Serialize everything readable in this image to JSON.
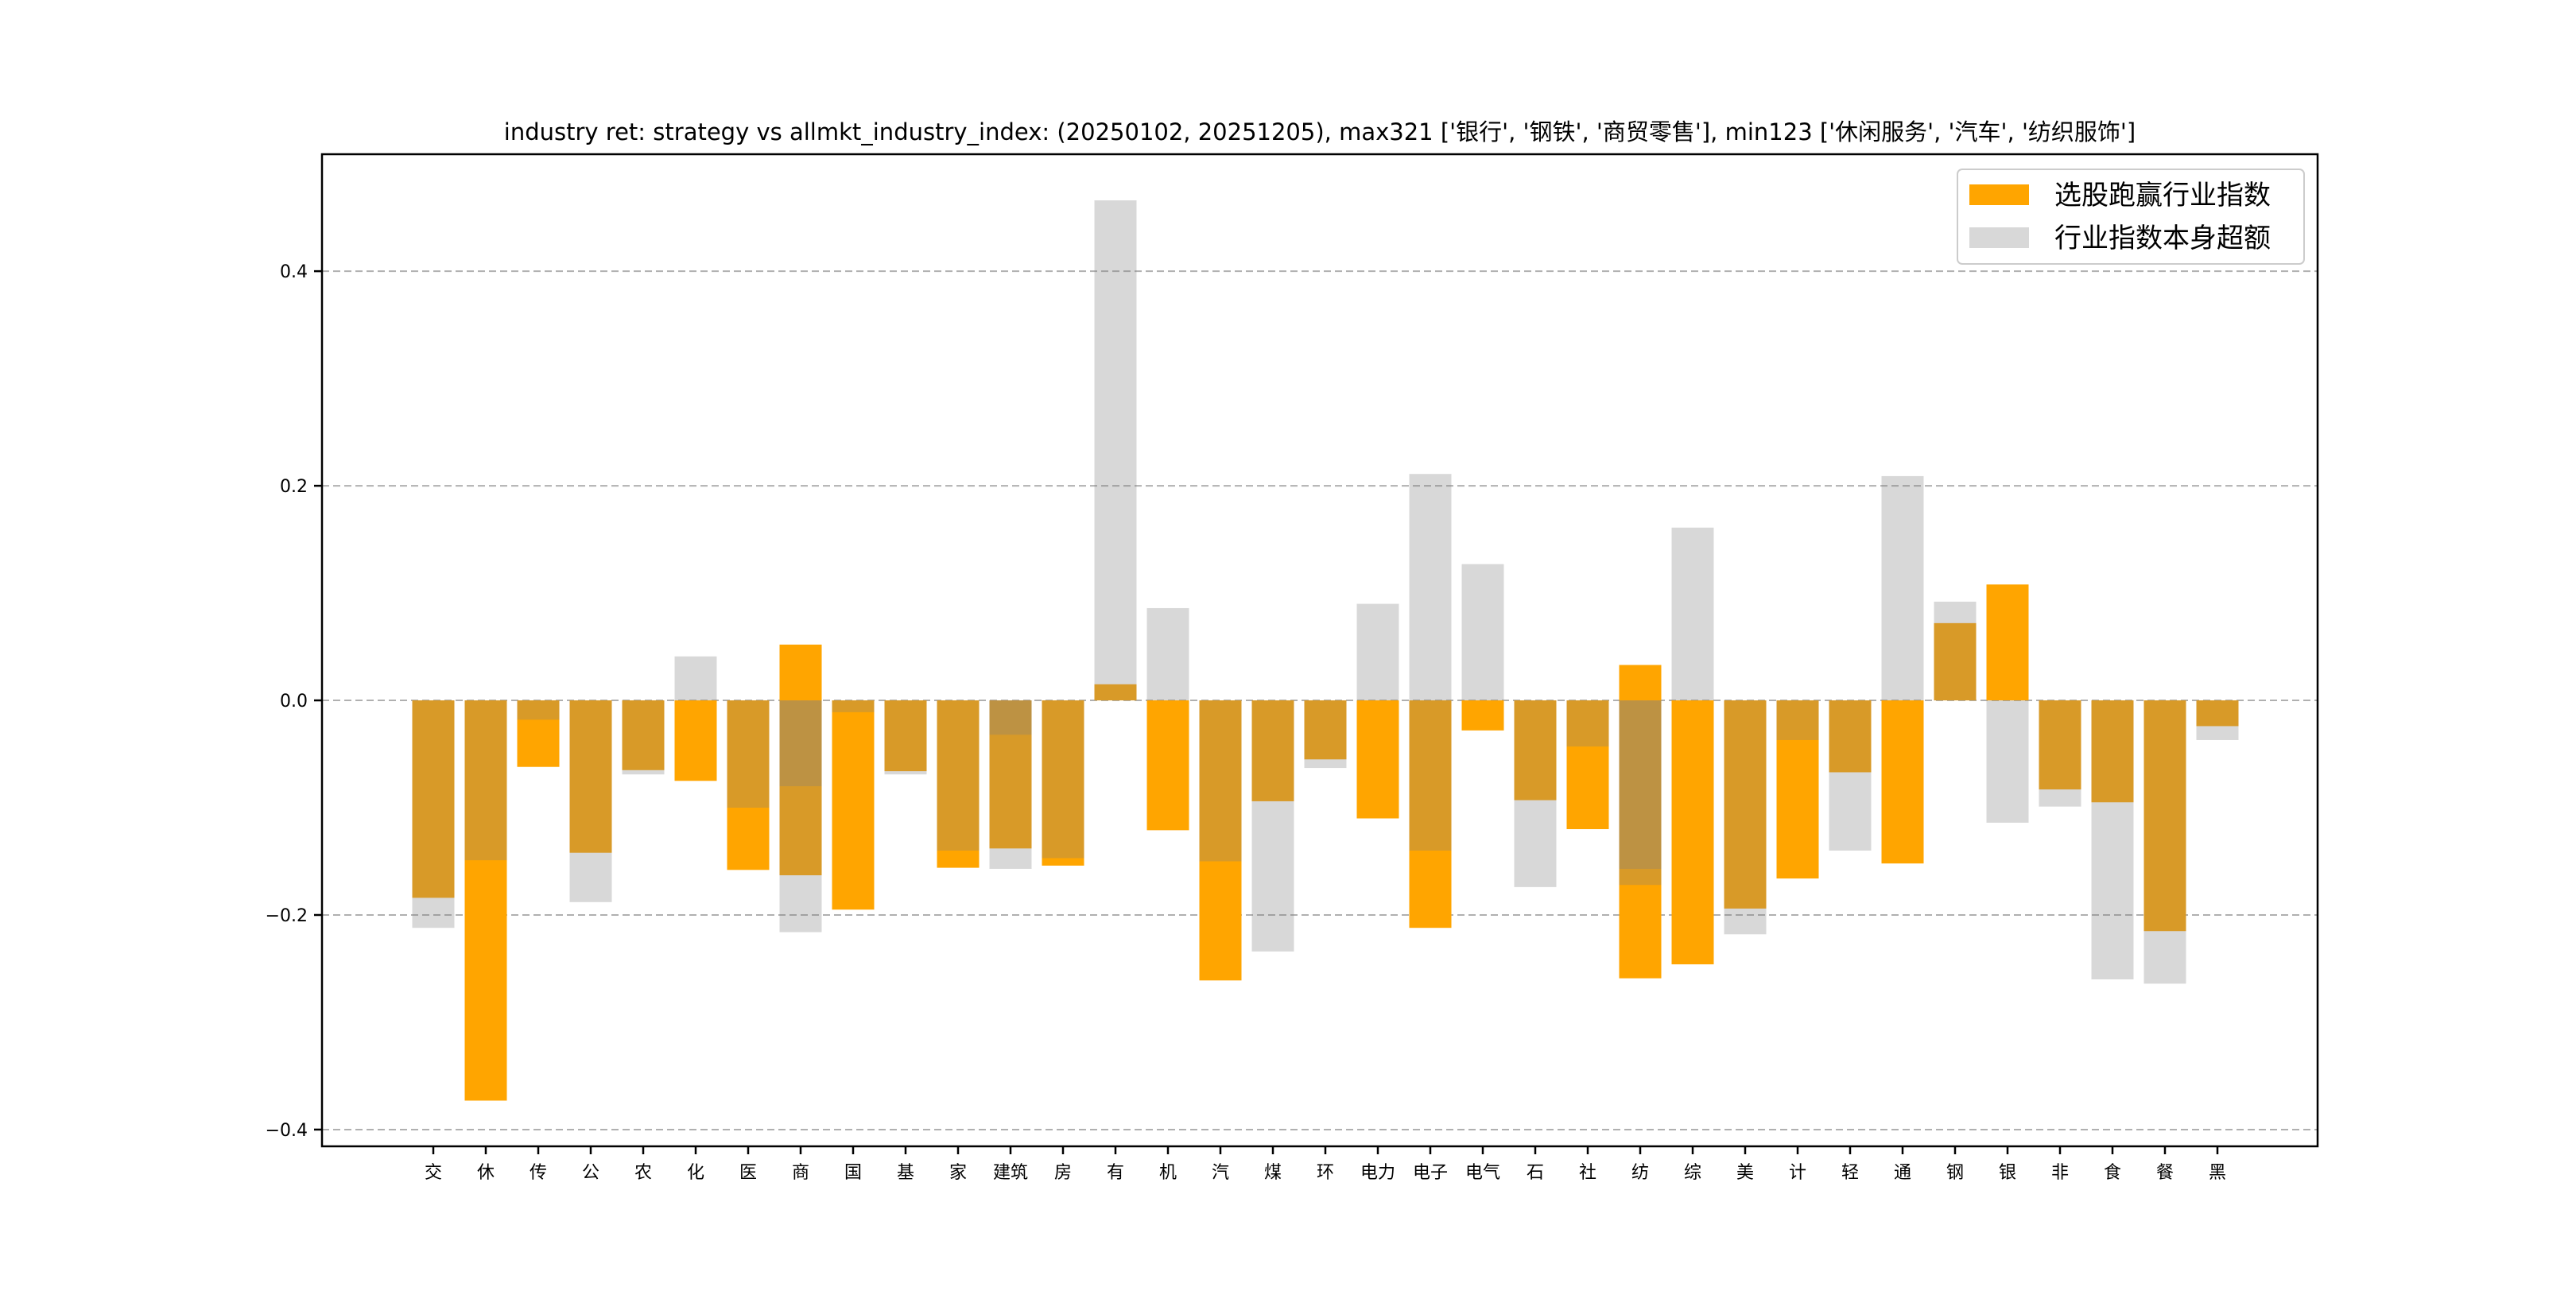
{
  "chart_data": {
    "type": "bar",
    "title": "industry ret: strategy vs allmkt_industry_index: (20250102, 20251205), max321 ['银行', '钢铁', '商贸零售'], min123 ['休闲服务', '汽车', '纺织服饰']",
    "xlabel": "",
    "ylabel": "",
    "ylim": [
      -0.4156,
      0.509
    ],
    "yticks": [
      -0.4,
      -0.2,
      0.0,
      0.2,
      0.4
    ],
    "ytick_labels": [
      "−0.4",
      "−0.2",
      "0.0",
      "0.2",
      "0.4"
    ],
    "grid": "y, dashed",
    "legend_position": "top-right",
    "colors": {
      "strategy": "#ffa500",
      "index": "#818181",
      "index_alpha": 0.31
    },
    "categories": [
      "交",
      "休",
      "传",
      "公",
      "农",
      "化",
      "医",
      "商",
      "国",
      "基",
      "家",
      "建筑",
      "房",
      "有",
      "机",
      "汽",
      "煤",
      "环",
      "电力",
      "电子",
      "电气",
      "石",
      "社",
      "纺",
      "综",
      "美",
      "计",
      "轻",
      "通",
      "钢",
      "银",
      "非",
      "食",
      "餐",
      "黑"
    ],
    "series": [
      {
        "name": "选股跑赢行业指数",
        "values": [
          [
            -0.184
          ],
          [
            -0.373
          ],
          [
            -0.062
          ],
          [
            -0.142
          ],
          [
            -0.065
          ],
          [
            -0.075
          ],
          [
            -0.158
          ],
          [
            0.052,
            -0.163
          ],
          [
            -0.195
          ],
          [
            -0.066
          ],
          [
            -0.156
          ],
          [
            -0.138
          ],
          [
            -0.154
          ],
          [
            0.015
          ],
          [
            -0.121
          ],
          [
            -0.261
          ],
          [
            -0.094
          ],
          [
            -0.055
          ],
          [
            -0.11
          ],
          [
            -0.212
          ],
          [
            -0.028
          ],
          [
            -0.093
          ],
          [
            -0.12
          ],
          [
            0.033,
            -0.259
          ],
          [
            -0.246
          ],
          [
            -0.194
          ],
          [
            -0.166
          ],
          [
            -0.067
          ],
          [
            -0.152
          ],
          [
            0.072
          ],
          [
            0.108
          ],
          [
            -0.083
          ],
          [
            -0.095
          ],
          [
            -0.215
          ],
          [
            -0.024
          ]
        ]
      },
      {
        "name": "行业指数本身超额",
        "values": [
          [
            -0.212
          ],
          [
            -0.149
          ],
          [
            -0.018
          ],
          [
            -0.188
          ],
          [
            -0.069
          ],
          [
            0.041
          ],
          [
            -0.1
          ],
          [
            -0.08,
            -0.216
          ],
          [
            -0.011
          ],
          [
            -0.069
          ],
          [
            -0.14
          ],
          [
            -0.032,
            -0.157
          ],
          [
            -0.147
          ],
          [
            0.466
          ],
          [
            0.086
          ],
          [
            -0.15
          ],
          [
            -0.234
          ],
          [
            -0.063
          ],
          [
            0.09
          ],
          [
            0.211,
            -0.14
          ],
          [
            0.127
          ],
          [
            -0.174
          ],
          [
            -0.043
          ],
          [
            -0.157,
            -0.172
          ],
          [
            0.161
          ],
          [
            -0.218
          ],
          [
            -0.037
          ],
          [
            -0.14
          ],
          [
            0.209
          ],
          [
            0.092
          ],
          [
            -0.114
          ],
          [
            -0.099
          ],
          [
            -0.26
          ],
          [
            -0.264
          ],
          [
            -0.037
          ]
        ]
      }
    ]
  }
}
